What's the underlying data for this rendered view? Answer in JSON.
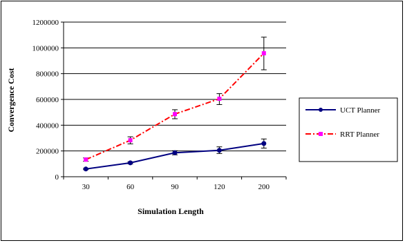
{
  "chart_data": {
    "type": "line",
    "categories": [
      "30",
      "60",
      "90",
      "120",
      "200"
    ],
    "xlabel": "Simulation Length",
    "ylabel": "Convergence Cost",
    "ylim": [
      0,
      1200000
    ],
    "yticks": [
      "0",
      "200000",
      "400000",
      "600000",
      "800000",
      "1000000",
      "1200000"
    ],
    "ytick_values": [
      0,
      200000,
      400000,
      600000,
      800000,
      1000000,
      1200000
    ],
    "grid": "horizontal",
    "legend_position": "right",
    "series": [
      {
        "name": "UCT Planner",
        "color": "#000080",
        "line_style": "solid",
        "marker": "circle",
        "values": [
          60000,
          108000,
          186000,
          205000,
          258000
        ],
        "error_low": [
          55000,
          100000,
          170000,
          180000,
          222000
        ],
        "error_high": [
          65000,
          116000,
          202000,
          232000,
          293000
        ]
      },
      {
        "name": "RRT Planner",
        "color": "#ff0000",
        "marker_color": "#ff00ff",
        "line_style": "dash-dot",
        "marker": "square",
        "values": [
          133000,
          283000,
          486000,
          605000,
          958000
        ],
        "error_low": [
          120000,
          255000,
          450000,
          560000,
          830000
        ],
        "error_high": [
          146000,
          310000,
          520000,
          645000,
          1083000
        ]
      }
    ]
  }
}
